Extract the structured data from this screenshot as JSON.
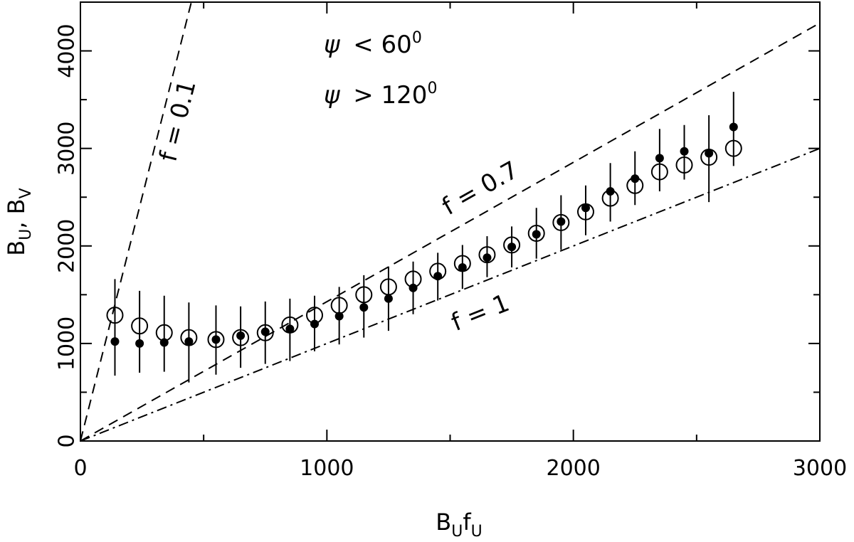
{
  "chart_data": {
    "type": "scatter",
    "xlabel": {
      "main": "B",
      "sub1": "U",
      "mid": "f",
      "sub2": "U"
    },
    "ylabel": {
      "main1": "B",
      "sub1": "U",
      "sep": ", ",
      "main2": "B",
      "sub2": "V"
    },
    "xlim": [
      0,
      3000
    ],
    "ylim": [
      0,
      4500
    ],
    "x_ticks": [
      0,
      1000,
      2000,
      3000
    ],
    "y_ticks": [
      0,
      1000,
      2000,
      3000,
      4000
    ],
    "x_minor_step": 500,
    "y_minor_step": 500,
    "annotations": {
      "psi_lt": {
        "sym": "ψ",
        "text": " < 60",
        "sup": "0"
      },
      "psi_gt": {
        "sym": "ψ",
        "text": " > 120",
        "sup": "0"
      }
    },
    "lines": [
      {
        "label": "f = 0.1",
        "slope": 10,
        "style": "dashed"
      },
      {
        "label": "f = 0.7",
        "slope": 1.4286,
        "style": "dashed"
      },
      {
        "label": "f = 1",
        "slope": 1,
        "style": "dashdot"
      }
    ],
    "series": [
      {
        "name": "ψ < 60°",
        "marker": "open-circle",
        "x": [
          140,
          240,
          340,
          440,
          550,
          650,
          750,
          850,
          950,
          1050,
          1150,
          1250,
          1350,
          1450,
          1550,
          1650,
          1750,
          1850,
          1950,
          2050,
          2150,
          2250,
          2350,
          2450,
          2550,
          2650
        ],
        "y": [
          1290,
          1180,
          1110,
          1060,
          1040,
          1060,
          1110,
          1190,
          1290,
          1390,
          1500,
          1580,
          1660,
          1740,
          1820,
          1910,
          2010,
          2130,
          2240,
          2350,
          2490,
          2620,
          2760,
          2830,
          2910,
          3000
        ]
      },
      {
        "name": "ψ > 120°",
        "marker": "filled-circle",
        "x": [
          140,
          240,
          340,
          440,
          550,
          650,
          750,
          850,
          950,
          1050,
          1150,
          1250,
          1350,
          1450,
          1550,
          1650,
          1750,
          1850,
          1950,
          2050,
          2150,
          2250,
          2350,
          2450,
          2550,
          2650
        ],
        "y": [
          1020,
          1000,
          1010,
          1020,
          1040,
          1080,
          1120,
          1150,
          1200,
          1280,
          1370,
          1460,
          1570,
          1690,
          1780,
          1880,
          1990,
          2120,
          2250,
          2390,
          2560,
          2690,
          2900,
          2970,
          2950,
          3220
        ],
        "err_lo": [
          1660,
          1540,
          1490,
          1420,
          1390,
          1380,
          1430,
          1460,
          1490,
          1580,
          1700,
          1790,
          1840,
          1930,
          2010,
          2100,
          2200,
          2390,
          2520,
          2620,
          2850,
          2970,
          3200,
          3240,
          3340,
          3580
        ],
        "err_hi": [
          670,
          700,
          710,
          600,
          680,
          750,
          790,
          820,
          920,
          990,
          1060,
          1130,
          1300,
          1440,
          1560,
          1680,
          1780,
          1870,
          1960,
          2110,
          2250,
          2420,
          2560,
          2680,
          2450,
          2820
        ]
      }
    ]
  }
}
